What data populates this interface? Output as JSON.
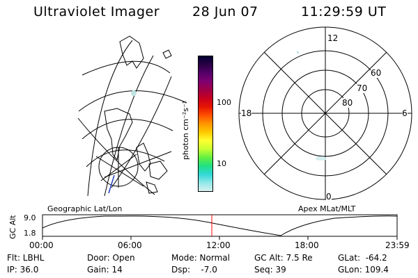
{
  "header": {
    "instrument": "Ultraviolet Imager",
    "date": "28 Jun 07",
    "time": "11:29:59 UT"
  },
  "colorbar": {
    "unit_label": "photon cm⁻²s⁻¹",
    "ticks": [
      "100",
      "10"
    ],
    "colors": [
      "#000033",
      "#2b0044",
      "#55006a",
      "#800070",
      "#a00045",
      "#c8001e",
      "#e61400",
      "#ff5000",
      "#ff9600",
      "#ffc800",
      "#ffff30",
      "#c8ff30",
      "#64f040",
      "#20e080",
      "#30d8d8",
      "#90e8e8",
      "#d8f0f0"
    ]
  },
  "polar_plot": {
    "mlt_labels": {
      "top": "12",
      "left": "18",
      "right": "6",
      "bottom": "0"
    },
    "lat_labels": [
      "60",
      "70",
      "80"
    ],
    "title": "Apex MLat/MLT"
  },
  "map_plot": {
    "title": "Geographic Lat/Lon"
  },
  "orbit_strip": {
    "ylabel": "GC Alt",
    "y_ticks": [
      "9.0",
      "1.8"
    ],
    "time_ticks": [
      "00:00",
      "06:00",
      "12:00",
      "18:00",
      "23:59"
    ],
    "current_marker_color": "#ff0000"
  },
  "footer": {
    "filt": "Flt: LBHL",
    "ip": "IP: 36.0",
    "door": "Door: Open",
    "gain": "Gain: 14",
    "mode": "Mode: Normal",
    "dsp": "Dsp:    -7.0",
    "gcalt": "GC Alt: 7.5 Re",
    "seq": "Seq: 39",
    "glat": "GLat:  -64.2",
    "glon": "GLon: 109.4"
  }
}
